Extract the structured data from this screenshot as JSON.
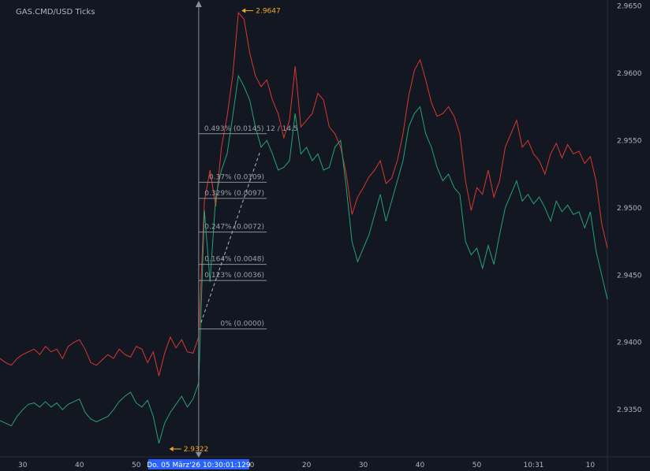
{
  "header": {
    "symbol_title": "GAS.CMD/USD  Ticks"
  },
  "colors": {
    "bg": "#131722",
    "ask": "#d9382f",
    "bid": "#26a274",
    "fib": "#8b8f98",
    "marker": "#f6a821",
    "crosshair_label_bg": "#2962ff",
    "axis_text": "#b2b5be"
  },
  "chart_data": {
    "type": "line",
    "title": "GAS.CMD/USD  Ticks",
    "xlabel": "",
    "ylabel": "",
    "ylim": [
      2.9315,
      2.9652
    ],
    "y_ticks": [
      2.935,
      2.94,
      2.945,
      2.95,
      2.955,
      2.96,
      2.965
    ],
    "y_tick_labels": [
      "2.9350",
      "2.9400",
      "2.9450",
      "2.9500",
      "2.9550",
      "2.9600",
      "2.9650"
    ],
    "x_tick_labels": [
      "30",
      "40",
      "50",
      "10",
      "20",
      "30",
      "40",
      "50",
      "10:31",
      "10"
    ],
    "x_tick_index": [
      4,
      14,
      24,
      44,
      54,
      64,
      74,
      84,
      94,
      104
    ],
    "x_count": 108,
    "series": [
      {
        "values": [
          2.9388,
          2.9385,
          2.9383,
          2.9388,
          2.9391,
          2.9393,
          2.9395,
          2.9391,
          2.9397,
          2.9393,
          2.9395,
          2.9388,
          2.9397,
          2.94,
          2.9402,
          2.9395,
          2.9385,
          2.9383,
          2.9387,
          2.9391,
          2.9388,
          2.9395,
          2.9391,
          2.9389,
          2.9397,
          2.9395,
          2.9385,
          2.9393,
          2.9375,
          2.9392,
          2.9404,
          2.9396,
          2.9402,
          2.9393,
          2.9392,
          2.9404,
          2.9505,
          2.9528,
          2.9501,
          2.9545,
          2.9568,
          2.9598,
          2.9645,
          2.964,
          2.9615,
          2.9598,
          2.959,
          2.9595,
          2.958,
          2.957,
          2.9552,
          2.9565,
          2.9605,
          2.956,
          2.9565,
          2.957,
          2.9585,
          2.958,
          2.956,
          2.9555,
          2.9545,
          2.9525,
          2.9495,
          2.9508,
          2.9515,
          2.9523,
          2.9528,
          2.9535,
          2.9518,
          2.9522,
          2.9535,
          2.9555,
          2.9583,
          2.9602,
          2.961,
          2.9595,
          2.9578,
          2.9568,
          2.957,
          2.9575,
          2.9568,
          2.9555,
          2.952,
          2.9498,
          2.9515,
          2.951,
          2.9528,
          2.9508,
          2.952,
          2.9545,
          2.9555,
          2.9565,
          2.9545,
          2.955,
          2.954,
          2.9535,
          2.9525,
          2.954,
          2.9548,
          2.9537,
          2.9547,
          2.954,
          2.9542,
          2.9533,
          2.9538,
          2.952,
          2.9488,
          2.947
        ]
      },
      {
        "values": [
          2.9342,
          2.934,
          2.9338,
          2.9345,
          2.935,
          2.9354,
          2.9355,
          2.9352,
          2.9356,
          2.9352,
          2.9355,
          2.935,
          2.9354,
          2.9356,
          2.9358,
          2.9348,
          2.9343,
          2.9341,
          2.9343,
          2.9345,
          2.935,
          2.9356,
          2.936,
          2.9363,
          2.9355,
          2.9352,
          2.9357,
          2.9345,
          2.9325,
          2.934,
          2.9348,
          2.9354,
          2.936,
          2.9352,
          2.9358,
          2.937,
          2.9498,
          2.9445,
          2.9508,
          2.9528,
          2.954,
          2.9568,
          2.9598,
          2.959,
          2.958,
          2.956,
          2.9545,
          2.955,
          2.954,
          2.9528,
          2.953,
          2.9535,
          2.957,
          2.954,
          2.9545,
          2.9535,
          2.954,
          2.9528,
          2.953,
          2.9545,
          2.955,
          2.9515,
          2.9475,
          2.946,
          2.947,
          2.948,
          2.9495,
          2.951,
          2.949,
          2.9505,
          2.952,
          2.9535,
          2.956,
          2.957,
          2.9575,
          2.9555,
          2.9545,
          2.953,
          2.952,
          2.9525,
          2.9515,
          2.951,
          2.9475,
          2.9465,
          2.947,
          2.9455,
          2.9472,
          2.9458,
          2.948,
          2.95,
          2.951,
          2.952,
          2.9505,
          2.951,
          2.9503,
          2.9508,
          2.95,
          2.949,
          2.9505,
          2.9497,
          2.9502,
          2.9495,
          2.9497,
          2.9485,
          2.9497,
          2.9468,
          2.945,
          2.9432
        ]
      }
    ],
    "fib_levels": [
      {
        "label": "0.493% (0.0145)  12 / 14.5",
        "price": 2.9555
      },
      {
        "label": "0.37% (0.0109)",
        "price": 2.9519
      },
      {
        "label": "0.329% (0.0097)",
        "price": 2.9507
      },
      {
        "label": "0.247% (0.0072)",
        "price": 2.9482
      },
      {
        "label": "0.164% (0.0048)",
        "price": 2.9458
      },
      {
        "label": "0.123% (0.0036)",
        "price": 2.9446
      },
      {
        "label": "0% (0.0000)",
        "price": 2.941
      }
    ],
    "markers": [
      {
        "label": "2.9647",
        "price": 2.9647,
        "x_index": 42
      },
      {
        "label": "2.9322",
        "price": 2.9322,
        "x_index": 29
      }
    ],
    "crosshair": {
      "x_index": 35,
      "time_label": "Do. 05 März'26  10:30:01:129"
    }
  }
}
